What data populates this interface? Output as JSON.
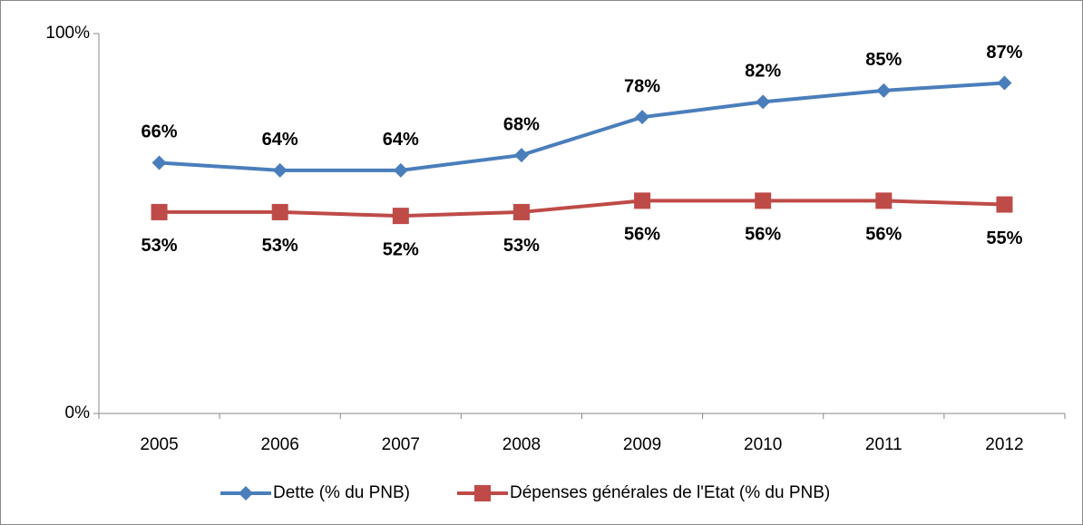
{
  "chart_data": {
    "type": "line",
    "categories": [
      "2005",
      "2006",
      "2007",
      "2008",
      "2009",
      "2010",
      "2011",
      "2012"
    ],
    "series": [
      {
        "name": "Dette (% du PNB)",
        "color": "#4a7ebb",
        "marker": "diamond",
        "values": [
          66,
          64,
          64,
          68,
          78,
          82,
          85,
          87
        ],
        "value_labels": [
          "66%",
          "64%",
          "64%",
          "68%",
          "78%",
          "82%",
          "85%",
          "87%"
        ]
      },
      {
        "name": "Dépenses générales de l'Etat (% du PNB)",
        "color": "#be4b48",
        "marker": "square",
        "values": [
          53,
          53,
          52,
          53,
          56,
          56,
          56,
          55
        ],
        "value_labels": [
          "53%",
          "53%",
          "52%",
          "53%",
          "56%",
          "56%",
          "56%",
          "55%"
        ]
      }
    ],
    "ylim": [
      0,
      100
    ],
    "yticks": [
      {
        "value": 0,
        "label": "0%"
      },
      {
        "value": 100,
        "label": "100%"
      }
    ],
    "grid": false,
    "legend": "bottom"
  }
}
